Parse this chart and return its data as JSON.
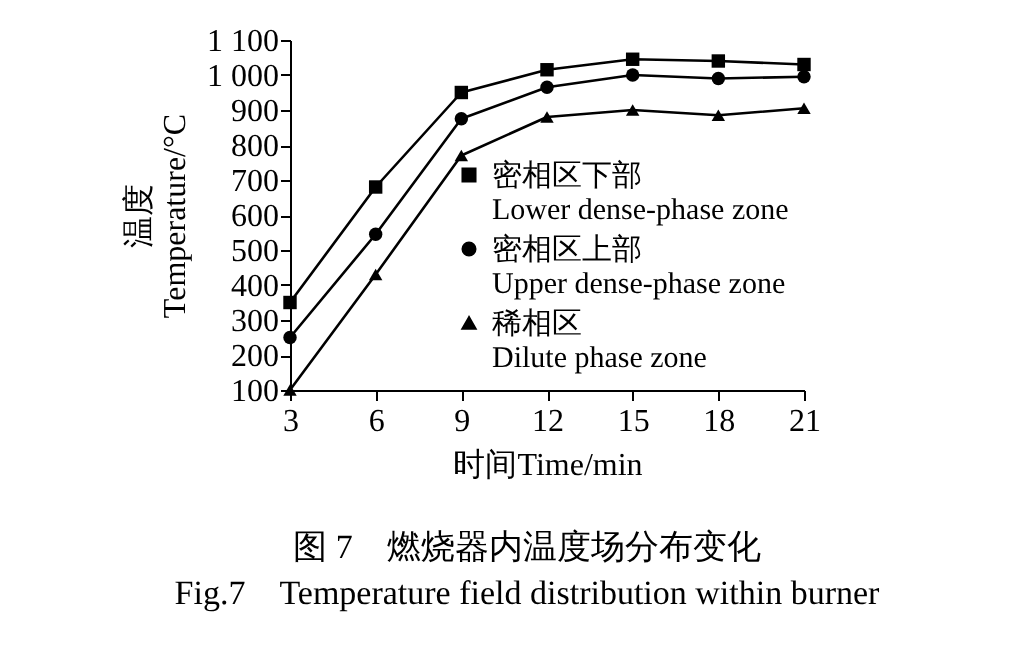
{
  "chart_data": {
    "type": "line",
    "title": "图 7　燃烧器内温度场分布变化",
    "subtitle": "Fig.7　Temperature field distribution within burner",
    "xlabel": "时间Time/min",
    "ylabel": "温度\nTemperature/°C",
    "x": [
      3,
      6,
      9,
      12,
      15,
      18,
      21
    ],
    "series": [
      {
        "name": "密相区下部\nLower dense-phase zone",
        "color": "#000000",
        "marker": "square",
        "values": [
          350,
          680,
          950,
          1015,
          1045,
          1040,
          1030
        ]
      },
      {
        "name": "密相区上部\nUpper dense-phase zone",
        "color": "#000000",
        "marker": "circle",
        "values": [
          250,
          545,
          875,
          965,
          1000,
          990,
          995
        ]
      },
      {
        "name": "稀相区\nDilute phase zone",
        "color": "#000000",
        "marker": "triangle",
        "values": [
          100,
          430,
          770,
          880,
          900,
          885,
          905
        ]
      }
    ],
    "xlim": [
      3,
      21
    ],
    "xticks": [
      3,
      6,
      9,
      12,
      15,
      18,
      21
    ],
    "ylim": [
      100,
      1100
    ],
    "yticks": [
      100,
      200,
      300,
      400,
      500,
      600,
      700,
      800,
      900,
      {
        "value": 1000,
        "label": "1 000"
      },
      {
        "value": 1100,
        "label": "1 100"
      }
    ],
    "grid": false,
    "legend": "right",
    "line_style": "solid"
  }
}
